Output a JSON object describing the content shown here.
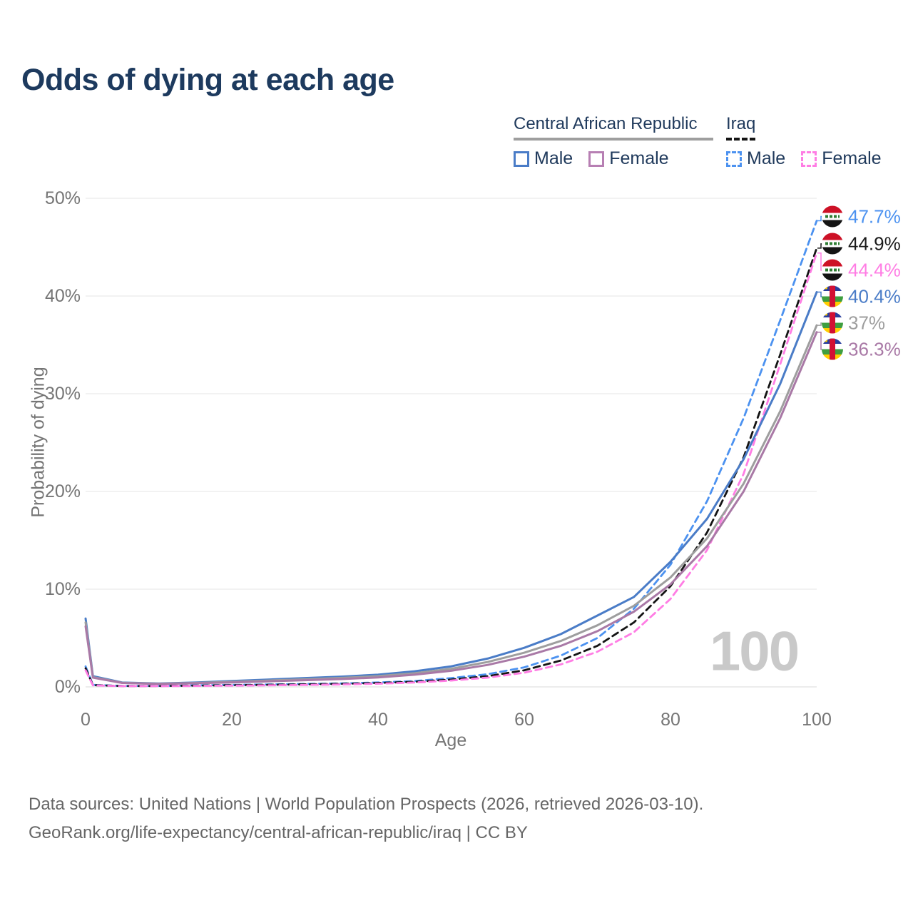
{
  "page": {
    "title": "Odds of dying at each age",
    "watermark": "100",
    "footer_line1": "Data sources: United Nations | World Population Prospects (2026, retrieved 2026-03-10).",
    "footer_line2": "GeoRank.org/life-expectancy/central-african-republic/iraq | CC BY"
  },
  "legend": {
    "groups": [
      {
        "title": "Central African Republic",
        "underline_color": "#9e9e9e",
        "underline_style": "solid",
        "items": [
          {
            "label": "Male",
            "color": "#4a7cc7",
            "dashed": false
          },
          {
            "label": "Female",
            "color": "#b77fb3",
            "dashed": false
          }
        ]
      },
      {
        "title": "Iraq",
        "underline_color": "#141414",
        "underline_style": "dashed",
        "items": [
          {
            "label": "Male",
            "color": "#4c92f0",
            "dashed": true
          },
          {
            "label": "Female",
            "color": "#ff7de4",
            "dashed": true
          }
        ]
      }
    ]
  },
  "chart_data": {
    "type": "line",
    "title": "Odds of dying at each age",
    "xlabel": "Age",
    "ylabel": "Probability of dying",
    "xlim": [
      0,
      100
    ],
    "ylim": [
      0,
      50
    ],
    "grid": "horizontal",
    "x_ticks": [
      {
        "value": 0,
        "label": "0"
      },
      {
        "value": 20,
        "label": "20"
      },
      {
        "value": 40,
        "label": "40"
      },
      {
        "value": 60,
        "label": "60"
      },
      {
        "value": 80,
        "label": "80"
      },
      {
        "value": 100,
        "label": "100"
      }
    ],
    "y_ticks": [
      {
        "value": 0,
        "label": "0%"
      },
      {
        "value": 10,
        "label": "10%"
      },
      {
        "value": 20,
        "label": "20%"
      },
      {
        "value": 30,
        "label": "30%"
      },
      {
        "value": 40,
        "label": "40%"
      },
      {
        "value": 50,
        "label": "50%"
      }
    ],
    "x": [
      0,
      1,
      5,
      10,
      15,
      20,
      25,
      30,
      35,
      40,
      45,
      50,
      55,
      60,
      65,
      70,
      75,
      80,
      85,
      90,
      95,
      100
    ],
    "series": [
      {
        "id": "iraq-male",
        "name": "Iraq Male",
        "country": "Iraq",
        "sex": "male",
        "color": "#4c92f0",
        "dashed": true,
        "flag": "iraq",
        "end_label": "47.7%",
        "label_color": "#4c92f0",
        "values": [
          2.1,
          0.2,
          0.1,
          0.1,
          0.15,
          0.2,
          0.25,
          0.3,
          0.35,
          0.45,
          0.6,
          0.9,
          1.3,
          2.0,
          3.2,
          5.0,
          8.0,
          12.5,
          19.0,
          27.5,
          37.5,
          47.7
        ]
      },
      {
        "id": "iraq-total",
        "name": "Iraq",
        "country": "Iraq",
        "sex": "total",
        "color": "#141414",
        "dashed": true,
        "flag": "iraq",
        "end_label": "44.9%",
        "label_color": "#1a1a1a",
        "values": [
          1.9,
          0.18,
          0.09,
          0.09,
          0.13,
          0.17,
          0.21,
          0.26,
          0.31,
          0.4,
          0.52,
          0.75,
          1.1,
          1.7,
          2.7,
          4.2,
          6.6,
          10.3,
          15.8,
          23.5,
          34.0,
          44.9
        ]
      },
      {
        "id": "iraq-female",
        "name": "Iraq Female",
        "country": "Iraq",
        "sex": "female",
        "color": "#ff7de4",
        "dashed": true,
        "flag": "iraq",
        "end_label": "44.4%",
        "label_color": "#ff7de4",
        "values": [
          1.7,
          0.16,
          0.08,
          0.08,
          0.1,
          0.13,
          0.16,
          0.2,
          0.25,
          0.33,
          0.45,
          0.65,
          0.95,
          1.45,
          2.3,
          3.6,
          5.6,
          9.0,
          14.0,
          21.8,
          33.0,
          44.4
        ]
      },
      {
        "id": "car-male",
        "name": "Central African Republic Male",
        "country": "Central African Republic",
        "sex": "male",
        "color": "#4a7cc7",
        "dashed": false,
        "flag": "car",
        "end_label": "40.4%",
        "label_color": "#4a7cc7",
        "values": [
          7.0,
          1.1,
          0.45,
          0.35,
          0.45,
          0.6,
          0.75,
          0.9,
          1.05,
          1.25,
          1.6,
          2.1,
          2.9,
          4.0,
          5.4,
          7.3,
          9.2,
          12.8,
          17.2,
          23.3,
          31.0,
          40.4
        ]
      },
      {
        "id": "car-total",
        "name": "Central African Republic",
        "country": "Central African Republic",
        "sex": "total",
        "color": "#9e9e9e",
        "dashed": false,
        "flag": "car",
        "end_label": "37%",
        "label_color": "#9e9e9e",
        "values": [
          6.6,
          1.0,
          0.42,
          0.32,
          0.4,
          0.52,
          0.65,
          0.78,
          0.92,
          1.1,
          1.4,
          1.85,
          2.55,
          3.5,
          4.7,
          6.3,
          8.3,
          11.2,
          15.2,
          20.8,
          28.2,
          37.0
        ]
      },
      {
        "id": "car-female",
        "name": "Central African Republic Female",
        "country": "Central African Republic",
        "sex": "female",
        "color": "#a979a6",
        "dashed": false,
        "flag": "car",
        "end_label": "36.3%",
        "label_color": "#a979a6",
        "values": [
          6.2,
          0.95,
          0.4,
          0.3,
          0.37,
          0.46,
          0.57,
          0.68,
          0.8,
          0.97,
          1.25,
          1.65,
          2.25,
          3.1,
          4.2,
          5.7,
          7.7,
          10.5,
          14.4,
          20.0,
          27.5,
          36.3
        ]
      }
    ]
  }
}
